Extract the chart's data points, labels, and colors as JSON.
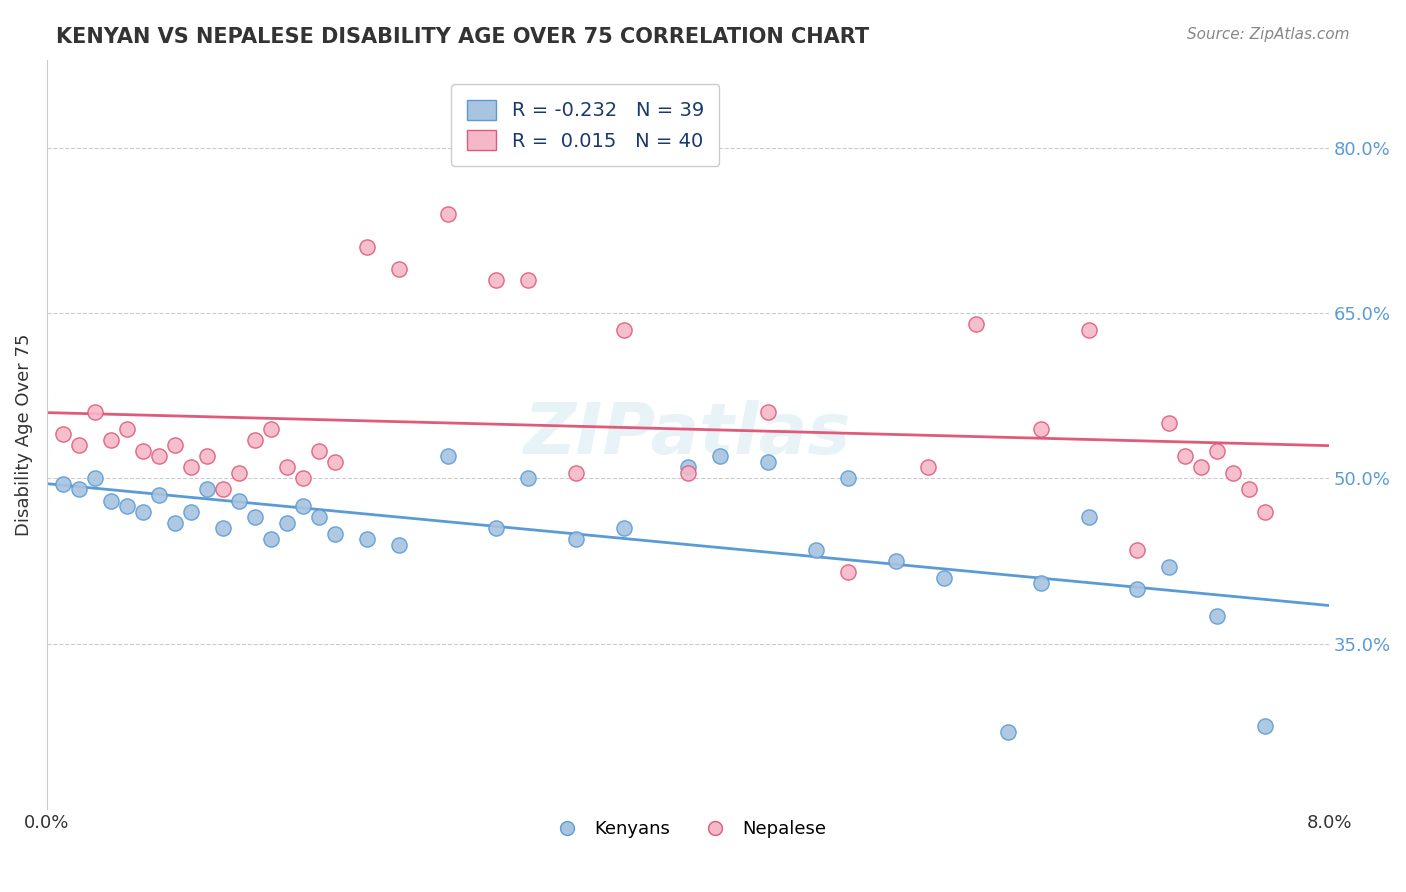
{
  "title": "KENYAN VS NEPALESE DISABILITY AGE OVER 75 CORRELATION CHART",
  "source_text": "Source: ZipAtlas.com",
  "ylabel": "Disability Age Over 75",
  "xmin": 0.0,
  "xmax": 0.08,
  "ymin": 0.2,
  "ymax": 0.88,
  "right_yticks": [
    0.35,
    0.5,
    0.65,
    0.8
  ],
  "right_yticklabels": [
    "35.0%",
    "50.0%",
    "65.0%",
    "80.0%"
  ],
  "kenyan_color": "#a8c4e0",
  "nepalese_color": "#f4b8c8",
  "kenyan_line_color": "#5b9bd5",
  "nepalese_line_color": "#e05a7a",
  "kenyan_R": -0.232,
  "nepalese_R": 0.015,
  "kenyan_N": 39,
  "nepalese_N": 40,
  "background_color": "#ffffff",
  "grid_color": "#cccccc",
  "watermark_text": "ZIPatlas",
  "kenyan_x": [
    0.001,
    0.002,
    0.003,
    0.004,
    0.005,
    0.006,
    0.007,
    0.008,
    0.009,
    0.01,
    0.011,
    0.012,
    0.013,
    0.014,
    0.015,
    0.016,
    0.017,
    0.018,
    0.02,
    0.022,
    0.025,
    0.028,
    0.03,
    0.033,
    0.036,
    0.04,
    0.042,
    0.045,
    0.048,
    0.05,
    0.053,
    0.056,
    0.06,
    0.062,
    0.065,
    0.068,
    0.07,
    0.073,
    0.076
  ],
  "kenyan_y": [
    0.495,
    0.49,
    0.5,
    0.48,
    0.475,
    0.47,
    0.485,
    0.46,
    0.47,
    0.49,
    0.455,
    0.48,
    0.465,
    0.445,
    0.46,
    0.475,
    0.465,
    0.45,
    0.445,
    0.44,
    0.52,
    0.455,
    0.5,
    0.445,
    0.455,
    0.51,
    0.52,
    0.515,
    0.435,
    0.5,
    0.425,
    0.41,
    0.27,
    0.405,
    0.465,
    0.4,
    0.42,
    0.375,
    0.275
  ],
  "nepalese_x": [
    0.001,
    0.002,
    0.003,
    0.004,
    0.005,
    0.006,
    0.007,
    0.008,
    0.009,
    0.01,
    0.011,
    0.012,
    0.013,
    0.014,
    0.015,
    0.016,
    0.017,
    0.018,
    0.02,
    0.022,
    0.025,
    0.028,
    0.03,
    0.033,
    0.036,
    0.04,
    0.045,
    0.05,
    0.055,
    0.058,
    0.062,
    0.065,
    0.068,
    0.07,
    0.071,
    0.072,
    0.073,
    0.074,
    0.075,
    0.076
  ],
  "nepalese_y": [
    0.54,
    0.53,
    0.56,
    0.535,
    0.545,
    0.525,
    0.52,
    0.53,
    0.51,
    0.52,
    0.49,
    0.505,
    0.535,
    0.545,
    0.51,
    0.5,
    0.525,
    0.515,
    0.71,
    0.69,
    0.74,
    0.68,
    0.68,
    0.505,
    0.635,
    0.505,
    0.56,
    0.415,
    0.51,
    0.64,
    0.545,
    0.635,
    0.435,
    0.55,
    0.52,
    0.51,
    0.525,
    0.505,
    0.49,
    0.47
  ]
}
